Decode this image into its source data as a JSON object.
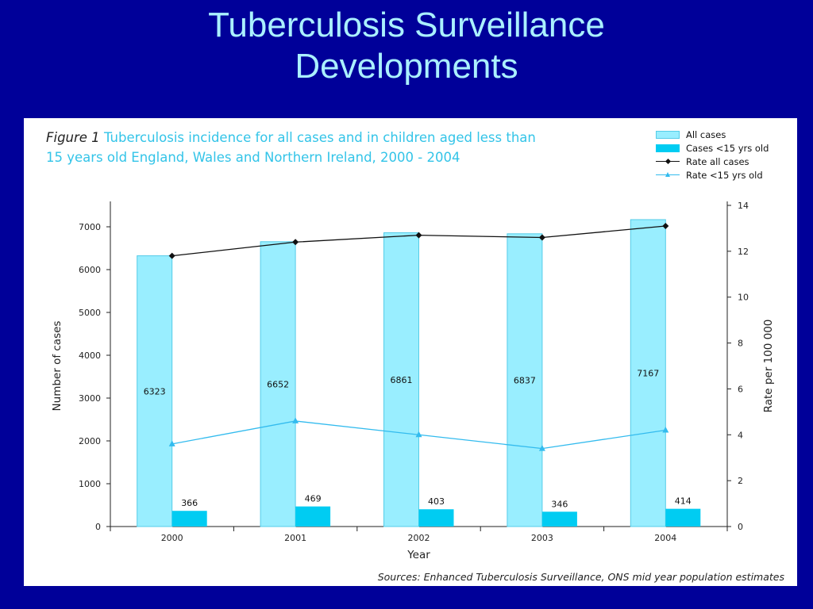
{
  "slide": {
    "title_line1": "Tuberculosis Surveillance",
    "title_line2": "Developments"
  },
  "figure": {
    "label": "Figure 1",
    "caption": "Tuberculosis incidence for all cases and in children aged less than 15 years old England, Wales and Northern Ireland, 2000 - 2004",
    "source": "Sources: Enhanced Tuberculosis Surveillance, ONS mid year population estimates"
  },
  "colors": {
    "background": "#000099",
    "title": "#aaf0ff",
    "all_cases_bar": "#99eeff",
    "all_cases_border": "#55cce8",
    "child_cases_bar": "#00ccf2",
    "rate_all_line": "#111111",
    "rate_child_line": "#33bbee",
    "caption": "#33c4e8"
  },
  "chart_data": {
    "type": "bar",
    "categories": [
      "2000",
      "2001",
      "2002",
      "2003",
      "2004"
    ],
    "xlabel": "Year",
    "ylabel": "Number of cases",
    "y2label": "Rate per 100 000",
    "ylim": [
      0,
      7500
    ],
    "yticks": [
      0,
      1000,
      2000,
      3000,
      4000,
      5000,
      6000,
      7000
    ],
    "y2lim": [
      0,
      14
    ],
    "y2ticks": [
      0,
      2,
      4,
      6,
      8,
      10,
      12,
      14
    ],
    "grid": false,
    "legend_position": "top-right",
    "series": [
      {
        "name": "All cases",
        "kind": "bar",
        "axis": "left",
        "values": [
          6323,
          6652,
          6861,
          6837,
          7167
        ]
      },
      {
        "name": "Cases <15 yrs old",
        "kind": "bar",
        "axis": "left",
        "values": [
          366,
          469,
          403,
          346,
          414
        ]
      },
      {
        "name": "Rate all cases",
        "kind": "line",
        "axis": "right",
        "marker": "diamond",
        "values": [
          11.8,
          12.4,
          12.7,
          12.6,
          13.1
        ]
      },
      {
        "name": "Rate <15 yrs old",
        "kind": "line",
        "axis": "right",
        "marker": "triangle",
        "values": [
          3.6,
          4.6,
          4.0,
          3.4,
          4.2
        ]
      }
    ]
  }
}
